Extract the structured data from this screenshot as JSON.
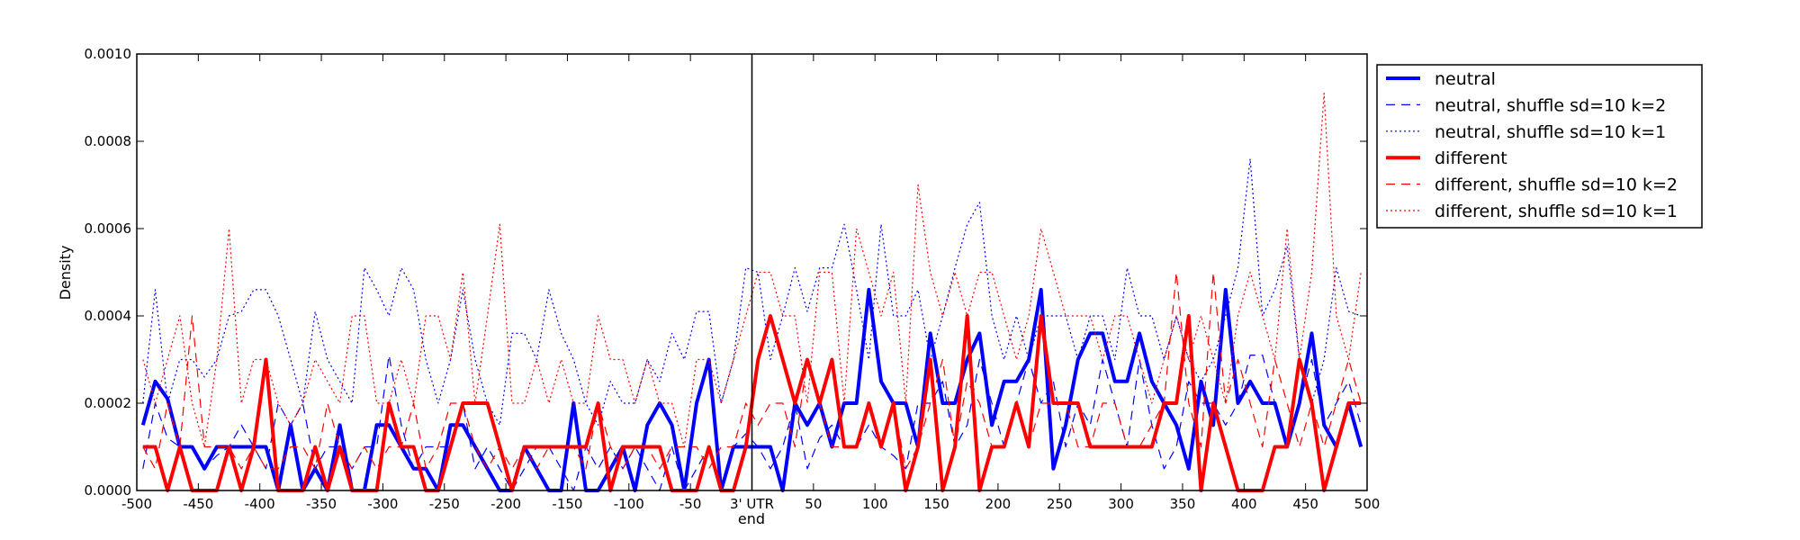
{
  "chart_data": {
    "type": "line",
    "title": "",
    "xlabel": "end",
    "ylabel": "Density",
    "xlim": [
      -500,
      500
    ],
    "ylim": [
      0,
      0.001
    ],
    "grid": false,
    "legend_position": "outside-right",
    "x_ticks": [
      "-500",
      "-450",
      "-400",
      "-350",
      "-300",
      "-250",
      "-200",
      "-150",
      "-100",
      "-50",
      "3' UTR",
      "50",
      "100",
      "150",
      "200",
      "250",
      "300",
      "350",
      "400",
      "450",
      "500"
    ],
    "y_ticks": [
      "0.0000",
      "0.0002",
      "0.0004",
      "0.0006",
      "0.0008",
      "0.0010"
    ],
    "vertical_marker_x": 0,
    "x": [
      -495,
      -485,
      -475,
      -465,
      -455,
      -445,
      -435,
      -425,
      -415,
      -405,
      -395,
      -385,
      -375,
      -365,
      -355,
      -345,
      -335,
      -325,
      -315,
      -305,
      -295,
      -285,
      -275,
      -265,
      -255,
      -245,
      -235,
      -225,
      -215,
      -205,
      -195,
      -185,
      -175,
      -165,
      -155,
      -145,
      -135,
      -125,
      -115,
      -105,
      -95,
      -85,
      -75,
      -65,
      -55,
      -45,
      -35,
      -25,
      -15,
      -5,
      5,
      15,
      25,
      35,
      45,
      55,
      65,
      75,
      85,
      95,
      105,
      115,
      125,
      135,
      145,
      155,
      165,
      175,
      185,
      195,
      205,
      215,
      225,
      235,
      245,
      255,
      265,
      275,
      285,
      295,
      305,
      315,
      325,
      335,
      345,
      355,
      365,
      375,
      385,
      395,
      405,
      415,
      425,
      435,
      445,
      455,
      465,
      475,
      485,
      495
    ],
    "series": [
      {
        "name": "neutral",
        "color": "#0000ff",
        "style": "solid",
        "width": 4,
        "values": [
          0.00015,
          0.00025,
          0.00021,
          0.0001,
          0.0001,
          5e-05,
          0.0001,
          0.0001,
          0.0001,
          0.0001,
          0.0001,
          0,
          0.00015,
          0,
          5e-05,
          0,
          0.00015,
          0,
          0,
          0.00015,
          0.00015,
          0.0001,
          5e-05,
          5e-05,
          0,
          0.00015,
          0.00015,
          0.0001,
          5e-05,
          0,
          0,
          0.0001,
          5e-05,
          0,
          0,
          0.0002,
          0,
          0,
          5e-05,
          0.0001,
          0,
          0.00015,
          0.0002,
          0.00015,
          0,
          0.0002,
          0.0003,
          0,
          0.0001,
          0.0001,
          0.0001,
          0.0001,
          0,
          0.0002,
          0.00015,
          0.0002,
          0.0001,
          0.0002,
          0.0002,
          0.00046,
          0.00025,
          0.0002,
          0.0002,
          0.0001,
          0.00036,
          0.0002,
          0.0002,
          0.0003,
          0.00036,
          0.00015,
          0.00025,
          0.00025,
          0.0003,
          0.00046,
          5e-05,
          0.00015,
          0.0003,
          0.00036,
          0.00036,
          0.00025,
          0.00025,
          0.00036,
          0.00025,
          0.0002,
          0.00015,
          5e-05,
          0.00025,
          0.00015,
          0.00046,
          0.0002,
          0.00025,
          0.0002,
          0.0002,
          0.0001,
          0.0002,
          0.00036,
          0.00015,
          0.0001,
          0.0002,
          0.0001
        ]
      },
      {
        "name": "neutral, shuffle sd=10 k=2",
        "color": "#0000ff",
        "style": "dashed",
        "width": 1.2,
        "values": [
          5e-05,
          0.0002,
          0.00012,
          0.0001,
          0.0001,
          5e-05,
          8e-05,
          0.0001,
          0.00015,
          0.0001,
          5e-05,
          0.0002,
          0.00015,
          0.0002,
          5e-05,
          0.0001,
          0.0001,
          5e-05,
          0.0001,
          0.0001,
          0.00031,
          0.00015,
          5e-05,
          0.0001,
          0.0001,
          0.0001,
          0.0002,
          5e-05,
          0.0001,
          5e-05,
          0,
          5e-05,
          0.0001,
          0.0001,
          5e-05,
          0,
          0.0001,
          5e-05,
          0.0001,
          5e-05,
          0.0001,
          5e-05,
          0,
          0.0001,
          0,
          5e-05,
          0.0001,
          0,
          0.0001,
          0.00013,
          0.0001,
          5e-05,
          0.0001,
          0.0002,
          5e-05,
          0.00012,
          0.00015,
          0.0001,
          0.0001,
          0.00015,
          0.0001,
          8e-05,
          5e-05,
          0.0002,
          0.0002,
          0.00025,
          0.0001,
          0.00015,
          0.0003,
          0.0002,
          0.0001,
          0.0002,
          0.0003,
          0.0002,
          0.00025,
          0.0001,
          0.0002,
          0.00015,
          0.0003,
          0.0002,
          0.0001,
          0.0003,
          0.00015,
          5e-05,
          0.0001,
          0.00025,
          0.0002,
          0.0002,
          0.00015,
          0.0002,
          0.00031,
          0.00031,
          0.0002,
          0.0001,
          0.0002,
          0.0003,
          0.00015,
          0.0002,
          0.00025,
          0.00015
        ]
      },
      {
        "name": "neutral, shuffle sd=10 k=1",
        "color": "#0000ff",
        "style": "dotted",
        "width": 1.2,
        "values": [
          0.0002,
          0.00046,
          0.0002,
          0.0003,
          0.0003,
          0.00026,
          0.0003,
          0.0004,
          0.00041,
          0.00046,
          0.00046,
          0.0004,
          0.0003,
          0.0002,
          0.00041,
          0.0003,
          0.00025,
          0.0002,
          0.00051,
          0.00046,
          0.0004,
          0.00051,
          0.00046,
          0.0003,
          0.0002,
          0.0003,
          0.00046,
          0.0003,
          0.0002,
          0.00015,
          0.00036,
          0.00036,
          0.0003,
          0.00046,
          0.00036,
          0.0003,
          0.0002,
          0.00015,
          0.00025,
          0.0002,
          0.0002,
          0.0003,
          0.00025,
          0.00036,
          0.0003,
          0.00041,
          0.00041,
          0.0002,
          0.0003,
          0.00051,
          0.0005,
          0.0003,
          0.0004,
          0.00051,
          0.00041,
          0.00051,
          0.00051,
          0.00061,
          0.00046,
          0.0003,
          0.00061,
          0.0004,
          0.0004,
          0.00046,
          0.0003,
          0.0004,
          0.00051,
          0.00061,
          0.00066,
          0.0004,
          0.0003,
          0.0004,
          0.0003,
          0.0004,
          0.0004,
          0.0004,
          0.0003,
          0.0004,
          0.0004,
          0.0003,
          0.00051,
          0.0004,
          0.0004,
          0.0003,
          0.0004,
          0.0003,
          0.00025,
          0.0003,
          0.0004,
          0.00051,
          0.00076,
          0.0004,
          0.00046,
          0.00056,
          0.0003,
          0.0002,
          0.0003,
          0.00051,
          0.00041,
          0.0004
        ]
      },
      {
        "name": "different",
        "color": "#ff0000",
        "style": "solid",
        "width": 4,
        "values": [
          0.0001,
          0.0001,
          0,
          0.0001,
          0,
          0,
          0,
          0.0001,
          0,
          0.0001,
          0.0003,
          0,
          0,
          0,
          0.0001,
          0,
          0.0001,
          0,
          0,
          0,
          0.0002,
          0.0001,
          0.0001,
          0,
          0,
          0.0001,
          0.0002,
          0.0002,
          0.0002,
          0.0001,
          0,
          0.0001,
          0.0001,
          0.0001,
          0.0001,
          0.0001,
          0.0001,
          0.0002,
          0,
          0.0001,
          0.0001,
          0.0001,
          0.0001,
          0,
          0,
          0,
          0.0001,
          0,
          0,
          0.0001,
          0.0003,
          0.0004,
          0.0003,
          0.0002,
          0.0003,
          0.0002,
          0.0003,
          0.0001,
          0.0001,
          0.0002,
          0.0001,
          0.0002,
          0,
          0.0001,
          0.0003,
          0,
          0.0001,
          0.0004,
          0,
          0.0001,
          0.0001,
          0.0002,
          0.0001,
          0.0004,
          0.0002,
          0.0002,
          0.0002,
          0.0001,
          0.0001,
          0.0001,
          0.0001,
          0.0001,
          0.0001,
          0.0002,
          0.0002,
          0.0004,
          0,
          0.0002,
          0.0001,
          0,
          0,
          0,
          0.0001,
          0.0001,
          0.0003,
          0.0002,
          0,
          0.0001,
          0.0002,
          0.0002
        ]
      },
      {
        "name": "different, shuffle sd=10 k=2",
        "color": "#ff0000",
        "style": "dashed",
        "width": 1.2,
        "values": [
          0.0001,
          5e-05,
          0.0002,
          0.0001,
          0.0004,
          0.0001,
          0.0001,
          0.0001,
          5e-05,
          0.0001,
          5e-05,
          5e-05,
          0.0001,
          0.0001,
          5e-05,
          0.0002,
          0.0001,
          5e-05,
          0.0001,
          5e-05,
          0.0001,
          0.0001,
          0.0002,
          5e-05,
          0.0001,
          0.0002,
          0.0002,
          0.0001,
          5e-05,
          0.0001,
          5e-05,
          0.0001,
          5e-05,
          0.0001,
          0.0001,
          0.0001,
          5e-05,
          0.0002,
          0.0001,
          5e-05,
          0.0001,
          0.0001,
          5e-05,
          0.0001,
          0.0001,
          0.0001,
          5e-05,
          0.0001,
          0.0001,
          0.0002,
          0.00015,
          0.0002,
          0.0002,
          0.0001,
          0.0003,
          0.0002,
          0.0001,
          0.0001,
          0.0001,
          0.0002,
          0.0001,
          0.0002,
          5e-05,
          0.0001,
          0.0002,
          0.0003,
          0.0001,
          0.00025,
          0.0002,
          0.0001,
          0.0001,
          0.0002,
          0.0001,
          0.0002,
          0.0002,
          0.0002,
          0.0001,
          0.0001,
          0.0002,
          0.0002,
          0.0001,
          0.0001,
          0.00015,
          0.0002,
          0.0005,
          0.0002,
          0.0001,
          0.0005,
          0.0002,
          0.0003,
          0.0002,
          0.0001,
          0.0003,
          0.0002,
          0.0001,
          0.0002,
          0.0001,
          0.0002,
          0.0003,
          0.0002
        ]
      },
      {
        "name": "different, shuffle sd=10 k=1",
        "color": "#ff0000",
        "style": "dotted",
        "width": 1.2,
        "values": [
          0.0003,
          0.0002,
          0.0003,
          0.0004,
          0.0002,
          0.0001,
          0.0003,
          0.0006,
          0.0002,
          0.0003,
          0.0003,
          0.0002,
          0.00015,
          0.0002,
          0.0003,
          0.00025,
          0.0002,
          0.0004,
          0.0004,
          0.0002,
          0.0002,
          0.0003,
          0.0002,
          0.0004,
          0.0004,
          0.0003,
          0.0005,
          0.0002,
          0.0004,
          0.00061,
          0.0002,
          0.0002,
          0.0003,
          0.0002,
          0.0003,
          0.0002,
          0.0002,
          0.0004,
          0.0003,
          0.0003,
          0.0002,
          0.0003,
          0.0002,
          0.0002,
          0.0001,
          0.0003,
          0.0003,
          0.0002,
          0.0003,
          0.0004,
          0.0005,
          0.0005,
          0.0004,
          0.0004,
          0.0002,
          0.0005,
          0.0005,
          0.0002,
          0.0006,
          0.0005,
          0.0004,
          0.0005,
          0.0002,
          0.0007,
          0.0005,
          0.0004,
          0.0005,
          0.0004,
          0.0005,
          0.0005,
          0.0004,
          0.0003,
          0.0004,
          0.0006,
          0.0005,
          0.0004,
          0.0004,
          0.0004,
          0.0003,
          0.0004,
          0.0004,
          0.0003,
          0.0002,
          0.0003,
          0.0004,
          0.0003,
          0.0004,
          0.0003,
          0.0002,
          0.0004,
          0.0005,
          0.0004,
          0.0003,
          0.0006,
          0.0003,
          0.0005,
          0.00091,
          0.0004,
          0.0003,
          0.0005
        ]
      }
    ]
  }
}
